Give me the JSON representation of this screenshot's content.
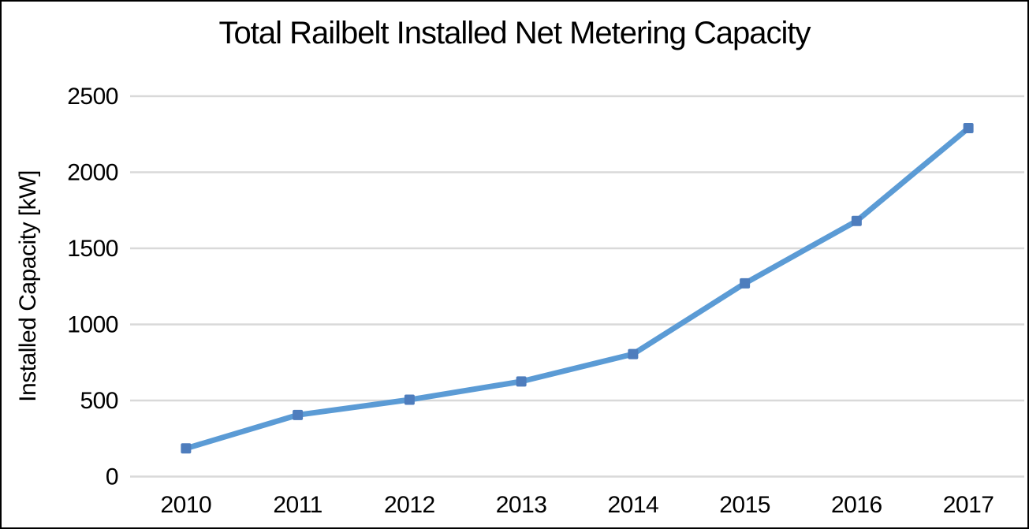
{
  "chart_data": {
    "type": "line",
    "title": "Total Railbelt Installed Net Metering Capacity",
    "xlabel": "",
    "ylabel": "Installed Capacity [kW]",
    "categories": [
      "2010",
      "2011",
      "2012",
      "2013",
      "2014",
      "2015",
      "2016",
      "2017"
    ],
    "series": [
      {
        "name": "Installed Capacity",
        "values": [
          185,
          405,
          505,
          625,
          805,
          1270,
          1680,
          2290
        ]
      }
    ],
    "ylim": [
      0,
      2500
    ],
    "yticks": [
      0,
      500,
      1000,
      1500,
      2000,
      2500
    ],
    "grid": true,
    "legend": "none",
    "colors": {
      "line": "#5B9BD5",
      "marker": "#4E7DBD",
      "gridline": "#D9D9D9",
      "text": "#000000",
      "border": "#000000",
      "background": "#ffffff"
    },
    "marker_shape": "square"
  }
}
